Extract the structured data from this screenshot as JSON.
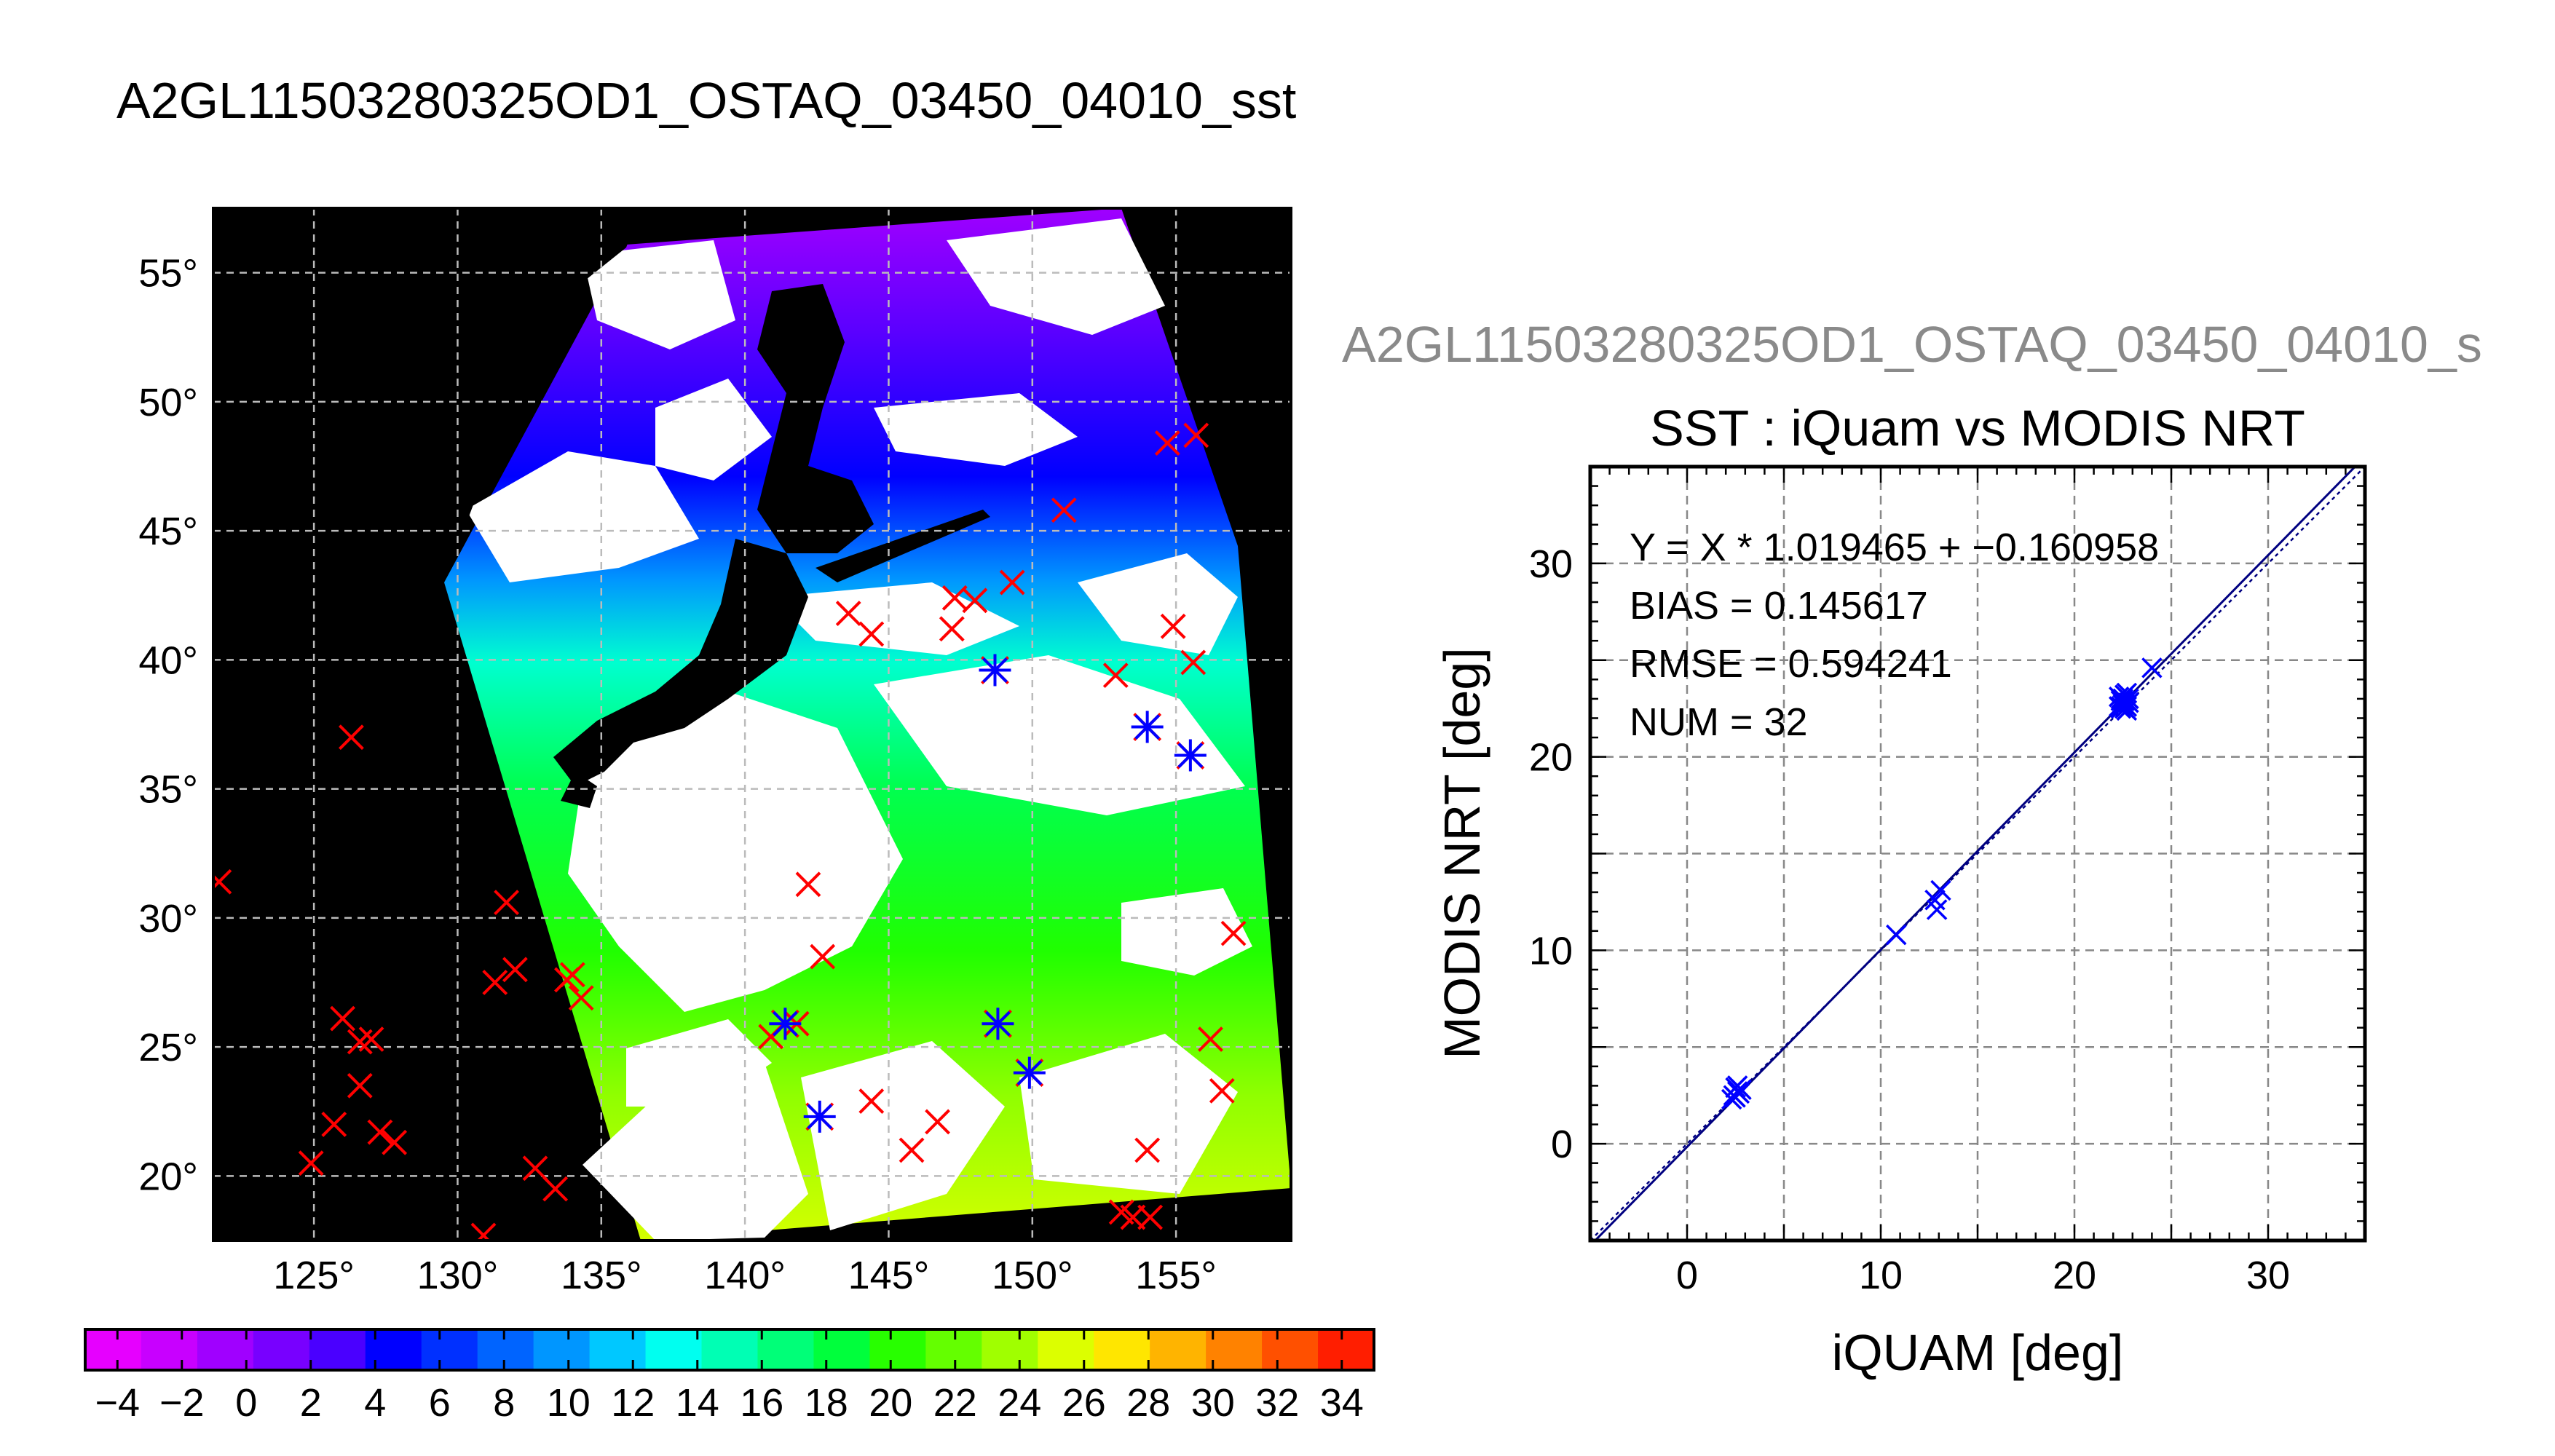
{
  "figure": {
    "main_title": "A2GL11503280325OD1_OSTAQ_03450_04010_sst",
    "sub_title": "A2GL11503280325OD1_OSTAQ_03450_04010_s"
  },
  "chart_data": [
    {
      "type": "map",
      "lon_ticks": [
        125,
        130,
        135,
        140,
        145,
        150,
        155
      ],
      "lat_ticks": [
        20,
        25,
        30,
        35,
        40,
        45,
        50,
        55
      ],
      "lon_range": [
        121.5,
        159
      ],
      "lat_range": [
        17.5,
        57.5
      ],
      "degree_symbol": "°",
      "grid": true,
      "colorbar": {
        "ticks": [
          "−4",
          "−2",
          "0",
          "2",
          "4",
          "6",
          "8",
          "10",
          "12",
          "14",
          "16",
          "18",
          "20",
          "22",
          "24",
          "26",
          "28",
          "30",
          "32",
          "34"
        ],
        "range": [
          -5,
          35
        ],
        "colors": [
          "#e600ff",
          "#c800ff",
          "#a000ff",
          "#7800ff",
          "#4a00ff",
          "#0000ff",
          "#0030ff",
          "#0064ff",
          "#0096ff",
          "#00c8ff",
          "#00fff0",
          "#00ffb4",
          "#00ff78",
          "#00ff3c",
          "#28ff00",
          "#64ff00",
          "#a0ff00",
          "#dcff00",
          "#ffe600",
          "#ffb400",
          "#ff8200",
          "#ff5000",
          "#ff1e00"
        ]
      },
      "matched_points": [
        {
          "lon": 142.6,
          "lat": 22.3
        },
        {
          "lon": 141.4,
          "lat": 25.9
        },
        {
          "lon": 148.8,
          "lat": 25.9
        },
        {
          "lon": 149.9,
          "lat": 24.0
        },
        {
          "lon": 148.7,
          "lat": 39.6
        },
        {
          "lon": 154.0,
          "lat": 37.4
        },
        {
          "lon": 155.5,
          "lat": 36.3
        }
      ],
      "buoy_points": [
        {
          "lon": 121.7,
          "lat": 31.4
        },
        {
          "lon": 126.3,
          "lat": 37.0
        },
        {
          "lon": 124.9,
          "lat": 20.5
        },
        {
          "lon": 125.7,
          "lat": 22.0
        },
        {
          "lon": 126.0,
          "lat": 26.1
        },
        {
          "lon": 126.6,
          "lat": 25.2
        },
        {
          "lon": 127.0,
          "lat": 25.3
        },
        {
          "lon": 126.6,
          "lat": 23.5
        },
        {
          "lon": 127.3,
          "lat": 21.7
        },
        {
          "lon": 127.8,
          "lat": 21.3
        },
        {
          "lon": 130.9,
          "lat": 17.7
        },
        {
          "lon": 131.7,
          "lat": 30.6
        },
        {
          "lon": 131.3,
          "lat": 27.5
        },
        {
          "lon": 132.0,
          "lat": 28.0
        },
        {
          "lon": 132.7,
          "lat": 20.3
        },
        {
          "lon": 133.4,
          "lat": 19.5
        },
        {
          "lon": 134.0,
          "lat": 27.8
        },
        {
          "lon": 134.3,
          "lat": 26.9
        },
        {
          "lon": 133.8,
          "lat": 27.6
        },
        {
          "lon": 140.9,
          "lat": 25.4
        },
        {
          "lon": 141.8,
          "lat": 25.9
        },
        {
          "lon": 142.2,
          "lat": 31.3
        },
        {
          "lon": 142.7,
          "lat": 28.5
        },
        {
          "lon": 144.4,
          "lat": 22.9
        },
        {
          "lon": 145.8,
          "lat": 21.0
        },
        {
          "lon": 146.7,
          "lat": 22.1
        },
        {
          "lon": 143.6,
          "lat": 41.8
        },
        {
          "lon": 144.4,
          "lat": 41.0
        },
        {
          "lon": 147.2,
          "lat": 41.2
        },
        {
          "lon": 147.3,
          "lat": 42.4
        },
        {
          "lon": 148.0,
          "lat": 42.3
        },
        {
          "lon": 149.3,
          "lat": 43.0
        },
        {
          "lon": 151.1,
          "lat": 45.8
        },
        {
          "lon": 152.9,
          "lat": 39.4
        },
        {
          "lon": 154.7,
          "lat": 48.4
        },
        {
          "lon": 155.7,
          "lat": 48.7
        },
        {
          "lon": 154.9,
          "lat": 41.3
        },
        {
          "lon": 155.6,
          "lat": 39.9
        },
        {
          "lon": 157.0,
          "lat": 29.4
        },
        {
          "lon": 156.2,
          "lat": 25.3
        },
        {
          "lon": 156.6,
          "lat": 23.3
        },
        {
          "lon": 154.0,
          "lat": 21.0
        },
        {
          "lon": 153.1,
          "lat": 18.6
        },
        {
          "lon": 153.5,
          "lat": 18.4
        },
        {
          "lon": 154.1,
          "lat": 18.4
        }
      ]
    },
    {
      "type": "scatter",
      "title": "SST : iQuam vs MODIS NRT",
      "xlabel": "iQUAM [deg]",
      "ylabel": "MODIS NRT [deg]",
      "xlim": [
        -5,
        35
      ],
      "ylim": [
        -5,
        35
      ],
      "xticks": [
        0,
        10,
        20,
        30
      ],
      "yticks": [
        0,
        10,
        20,
        30
      ],
      "grid": true,
      "stats": [
        "Y = X * 1.019465 + −0.160958",
        "BIAS = 0.145617",
        "RMSE = 0.594241",
        "NUM = 32"
      ],
      "fit": {
        "slope": 1.019465,
        "intercept": -0.160958
      },
      "points": [
        {
          "x": 2.3,
          "y": 2.3
        },
        {
          "x": 2.5,
          "y": 2.9
        },
        {
          "x": 2.7,
          "y": 2.6
        },
        {
          "x": 2.4,
          "y": 2.5
        },
        {
          "x": 2.6,
          "y": 2.7
        },
        {
          "x": 2.8,
          "y": 2.8
        },
        {
          "x": 2.5,
          "y": 2.4
        },
        {
          "x": 2.6,
          "y": 3.0
        },
        {
          "x": 10.8,
          "y": 10.8
        },
        {
          "x": 12.9,
          "y": 12.1
        },
        {
          "x": 13.1,
          "y": 13.1
        },
        {
          "x": 12.8,
          "y": 12.6
        },
        {
          "x": 22.4,
          "y": 22.5
        },
        {
          "x": 22.5,
          "y": 23.0
        },
        {
          "x": 22.6,
          "y": 22.7
        },
        {
          "x": 22.3,
          "y": 23.1
        },
        {
          "x": 22.7,
          "y": 22.4
        },
        {
          "x": 22.5,
          "y": 22.9
        },
        {
          "x": 22.6,
          "y": 23.2
        },
        {
          "x": 22.4,
          "y": 22.6
        },
        {
          "x": 22.8,
          "y": 23.0
        },
        {
          "x": 22.5,
          "y": 22.8
        },
        {
          "x": 22.7,
          "y": 23.3
        },
        {
          "x": 22.4,
          "y": 23.0
        },
        {
          "x": 22.6,
          "y": 22.5
        },
        {
          "x": 22.5,
          "y": 22.7
        },
        {
          "x": 22.8,
          "y": 22.8
        },
        {
          "x": 22.3,
          "y": 22.6
        },
        {
          "x": 22.6,
          "y": 22.9
        },
        {
          "x": 24.0,
          "y": 24.6
        },
        {
          "x": 22.7,
          "y": 22.6
        },
        {
          "x": 22.4,
          "y": 22.9
        }
      ]
    }
  ]
}
